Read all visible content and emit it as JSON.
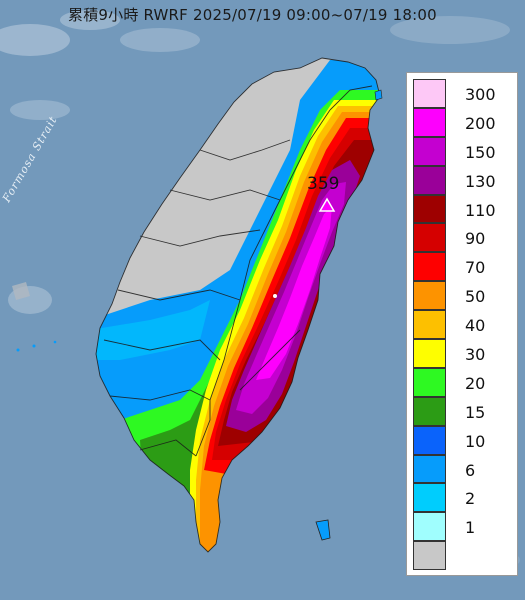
{
  "map": {
    "title": "累積9小時 RWRF 2025/07/19 09:00~07/19 18:00",
    "strait_label": "Formosa Strait",
    "max_value_label": "359",
    "ocean_color": "#6f97b9"
  },
  "legend": {
    "items": [
      {
        "label": "300",
        "color": "#fdc8f6"
      },
      {
        "label": "200",
        "color": "#fd00fd"
      },
      {
        "label": "150",
        "color": "#c400d0"
      },
      {
        "label": "130",
        "color": "#9a0099"
      },
      {
        "label": "110",
        "color": "#9e0000"
      },
      {
        "label": "90",
        "color": "#d50000"
      },
      {
        "label": "70",
        "color": "#fe0000"
      },
      {
        "label": "50",
        "color": "#fd9300"
      },
      {
        "label": "40",
        "color": "#fdc000"
      },
      {
        "label": "30",
        "color": "#fefe00"
      },
      {
        "label": "20",
        "color": "#2ef922"
      },
      {
        "label": "15",
        "color": "#2c9c15"
      },
      {
        "label": "10",
        "color": "#0a63fb"
      },
      {
        "label": "6",
        "color": "#069cfb"
      },
      {
        "label": "2",
        "color": "#00cdfd"
      },
      {
        "label": "1",
        "color": "#a0fefe"
      },
      {
        "label": "",
        "color": "#c8c8c8"
      }
    ]
  }
}
